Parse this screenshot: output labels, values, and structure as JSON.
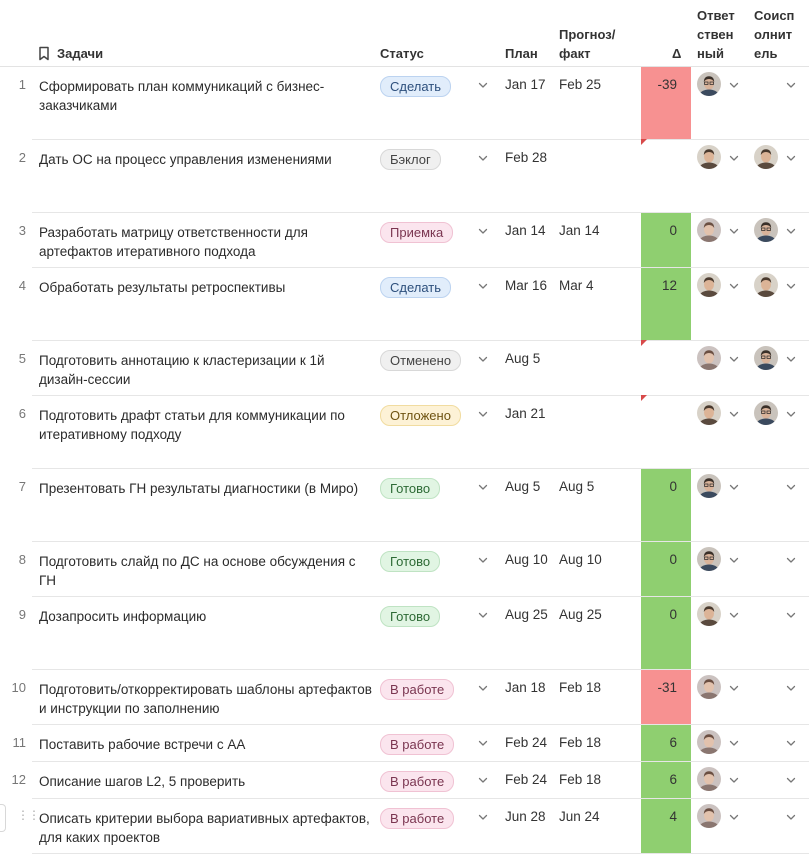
{
  "header": {
    "tasks": "Задачи",
    "status": "Статус",
    "plan": "План",
    "forecast": "Прогноз/ факт",
    "delta": "Δ",
    "owner": "Ответ ствен ный",
    "coexec": "Соисп олнит ель",
    "tasks_icon": "bookmark-icon"
  },
  "colors": {
    "negative": "#f79191",
    "positive": "#8fcf70",
    "flag": "#d84a4a"
  },
  "rows": [
    {
      "num": "1",
      "task": "Сформировать план коммуникаций с бизнес-заказчиками",
      "status": "Сделать",
      "status_key": "sdelat",
      "plan": "Jan 17",
      "fact": "Feb 25",
      "delta": "-39",
      "delta_sign": "neg",
      "owner": "a",
      "co": "",
      "flag": false
    },
    {
      "num": "2",
      "task": "Дать ОС на процесс управления изменениями",
      "status": "Бэклог",
      "status_key": "beklog",
      "plan": "Feb 28",
      "fact": "",
      "delta": "",
      "delta_sign": "",
      "owner": "b",
      "co": "b",
      "flag": true
    },
    {
      "num": "3",
      "task": "Разработать матрицу ответственности для артефактов итеративного подхода",
      "status": "Приемка",
      "status_key": "priemka",
      "plan": "Jan 14",
      "fact": "Jan 14",
      "delta": "0",
      "delta_sign": "pos",
      "owner": "c",
      "co": "a",
      "flag": false
    },
    {
      "num": "4",
      "task": "Обработать результаты ретроспективы",
      "status": "Сделать",
      "status_key": "sdelat",
      "plan": "Mar 16",
      "fact": "Mar 4",
      "delta": "12",
      "delta_sign": "pos",
      "owner": "b",
      "co": "b",
      "flag": false
    },
    {
      "num": "5",
      "task": "Подготовить аннотацию к кластеризации к 1й дизайн-сессии",
      "status": "Отменено",
      "status_key": "otmeneno",
      "plan": "Aug 5",
      "fact": "",
      "delta": "",
      "delta_sign": "",
      "owner": "c",
      "co": "a",
      "flag": true
    },
    {
      "num": "6",
      "task": "Подготовить драфт статьи для коммуникации по итеративному подходу",
      "status": "Отложено",
      "status_key": "otlozheno",
      "plan": "Jan 21",
      "fact": "",
      "delta": "",
      "delta_sign": "",
      "owner": "b",
      "co": "a",
      "flag": true
    },
    {
      "num": "7",
      "task": "Презентовать ГН результаты диагностики (в Миро)",
      "status": "Готово",
      "status_key": "gotovo",
      "plan": "Aug 5",
      "fact": "Aug 5",
      "delta": "0",
      "delta_sign": "pos",
      "owner": "a",
      "co": "",
      "flag": false
    },
    {
      "num": "8",
      "task": "Подготовить слайд по ДС на основе обсуждения с ГН",
      "status": "Готово",
      "status_key": "gotovo",
      "plan": "Aug 10",
      "fact": "Aug 10",
      "delta": "0",
      "delta_sign": "pos",
      "owner": "a",
      "co": "",
      "flag": false
    },
    {
      "num": "9",
      "task": "Дозапросить информацию",
      "status": "Готово",
      "status_key": "gotovo",
      "plan": "Aug 25",
      "fact": "Aug 25",
      "delta": "0",
      "delta_sign": "pos",
      "owner": "b",
      "co": "",
      "flag": false
    },
    {
      "num": "10",
      "task": "Подготовить/откорректировать шаблоны артефактов и инструкции по заполнению",
      "status": "В работе",
      "status_key": "vrabote",
      "plan": "Jan 18",
      "fact": "Feb 18",
      "delta": "-31",
      "delta_sign": "neg",
      "owner": "c",
      "co": "",
      "flag": false
    },
    {
      "num": "11",
      "task": "Поставить рабочие встречи с АА",
      "status": "В работе",
      "status_key": "vrabote",
      "plan": "Feb 24",
      "fact": "Feb 18",
      "delta": "6",
      "delta_sign": "pos",
      "owner": "c",
      "co": "",
      "flag": false
    },
    {
      "num": "12",
      "task": "Описание шагов L2, 5 проверить",
      "status": "В работе",
      "status_key": "vrabote",
      "plan": "Feb 24",
      "fact": "Feb 18",
      "delta": "6",
      "delta_sign": "pos",
      "owner": "c",
      "co": "",
      "flag": false
    },
    {
      "num": "",
      "task": "Описать критерии выбора вариативных артефактов, для каких проектов",
      "status": "В работе",
      "status_key": "vrabote",
      "plan": "Jun 28",
      "fact": "Jun 24",
      "delta": "4",
      "delta_sign": "pos",
      "owner": "c",
      "co": "",
      "flag": false,
      "drag_handle": true
    }
  ]
}
